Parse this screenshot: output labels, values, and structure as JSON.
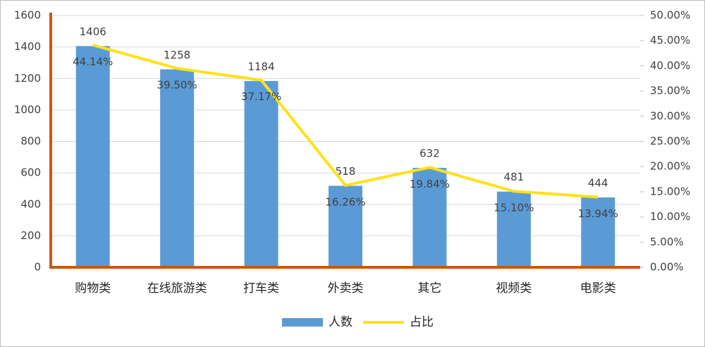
{
  "chart_data": {
    "type": "combo",
    "categories": [
      "购物类",
      "在线旅游类",
      "打车类",
      "外卖类",
      "其它",
      "视频类",
      "电影类"
    ],
    "series": [
      {
        "name": "人数",
        "type": "bar",
        "color": "#5b9bd5",
        "values": [
          1406,
          1258,
          1184,
          518,
          632,
          481,
          444
        ]
      },
      {
        "name": "占比",
        "type": "line",
        "axis": "y2",
        "color": "#ffe11a",
        "values": [
          44.14,
          39.5,
          37.17,
          16.26,
          19.84,
          15.1,
          13.94
        ],
        "value_labels": [
          "44.14%",
          "39.50%",
          "37.17%",
          "16.26%",
          "19.84%",
          "15.10%",
          "13.94%"
        ]
      }
    ],
    "ylim": [
      0,
      1600
    ],
    "yticks": [
      0,
      200,
      400,
      600,
      800,
      1000,
      1200,
      1400,
      1600
    ],
    "y2lim": [
      0,
      50
    ],
    "y2ticks": [
      {
        "value": 0,
        "label": "0.00%"
      },
      {
        "value": 5,
        "label": "5.00%"
      },
      {
        "value": 10,
        "label": "10.00%"
      },
      {
        "value": 15,
        "label": "15.00%"
      },
      {
        "value": 20,
        "label": "20.00%"
      },
      {
        "value": 25,
        "label": "25.00%"
      },
      {
        "value": 30,
        "label": "30.00%"
      },
      {
        "value": 35,
        "label": "35.00%"
      },
      {
        "value": 40,
        "label": "40.00%"
      },
      {
        "value": 45,
        "label": "45.00%"
      },
      {
        "value": 50,
        "label": "50.00%"
      }
    ],
    "grid": true,
    "axis_color": "#c55a11",
    "legend": "bottom"
  }
}
